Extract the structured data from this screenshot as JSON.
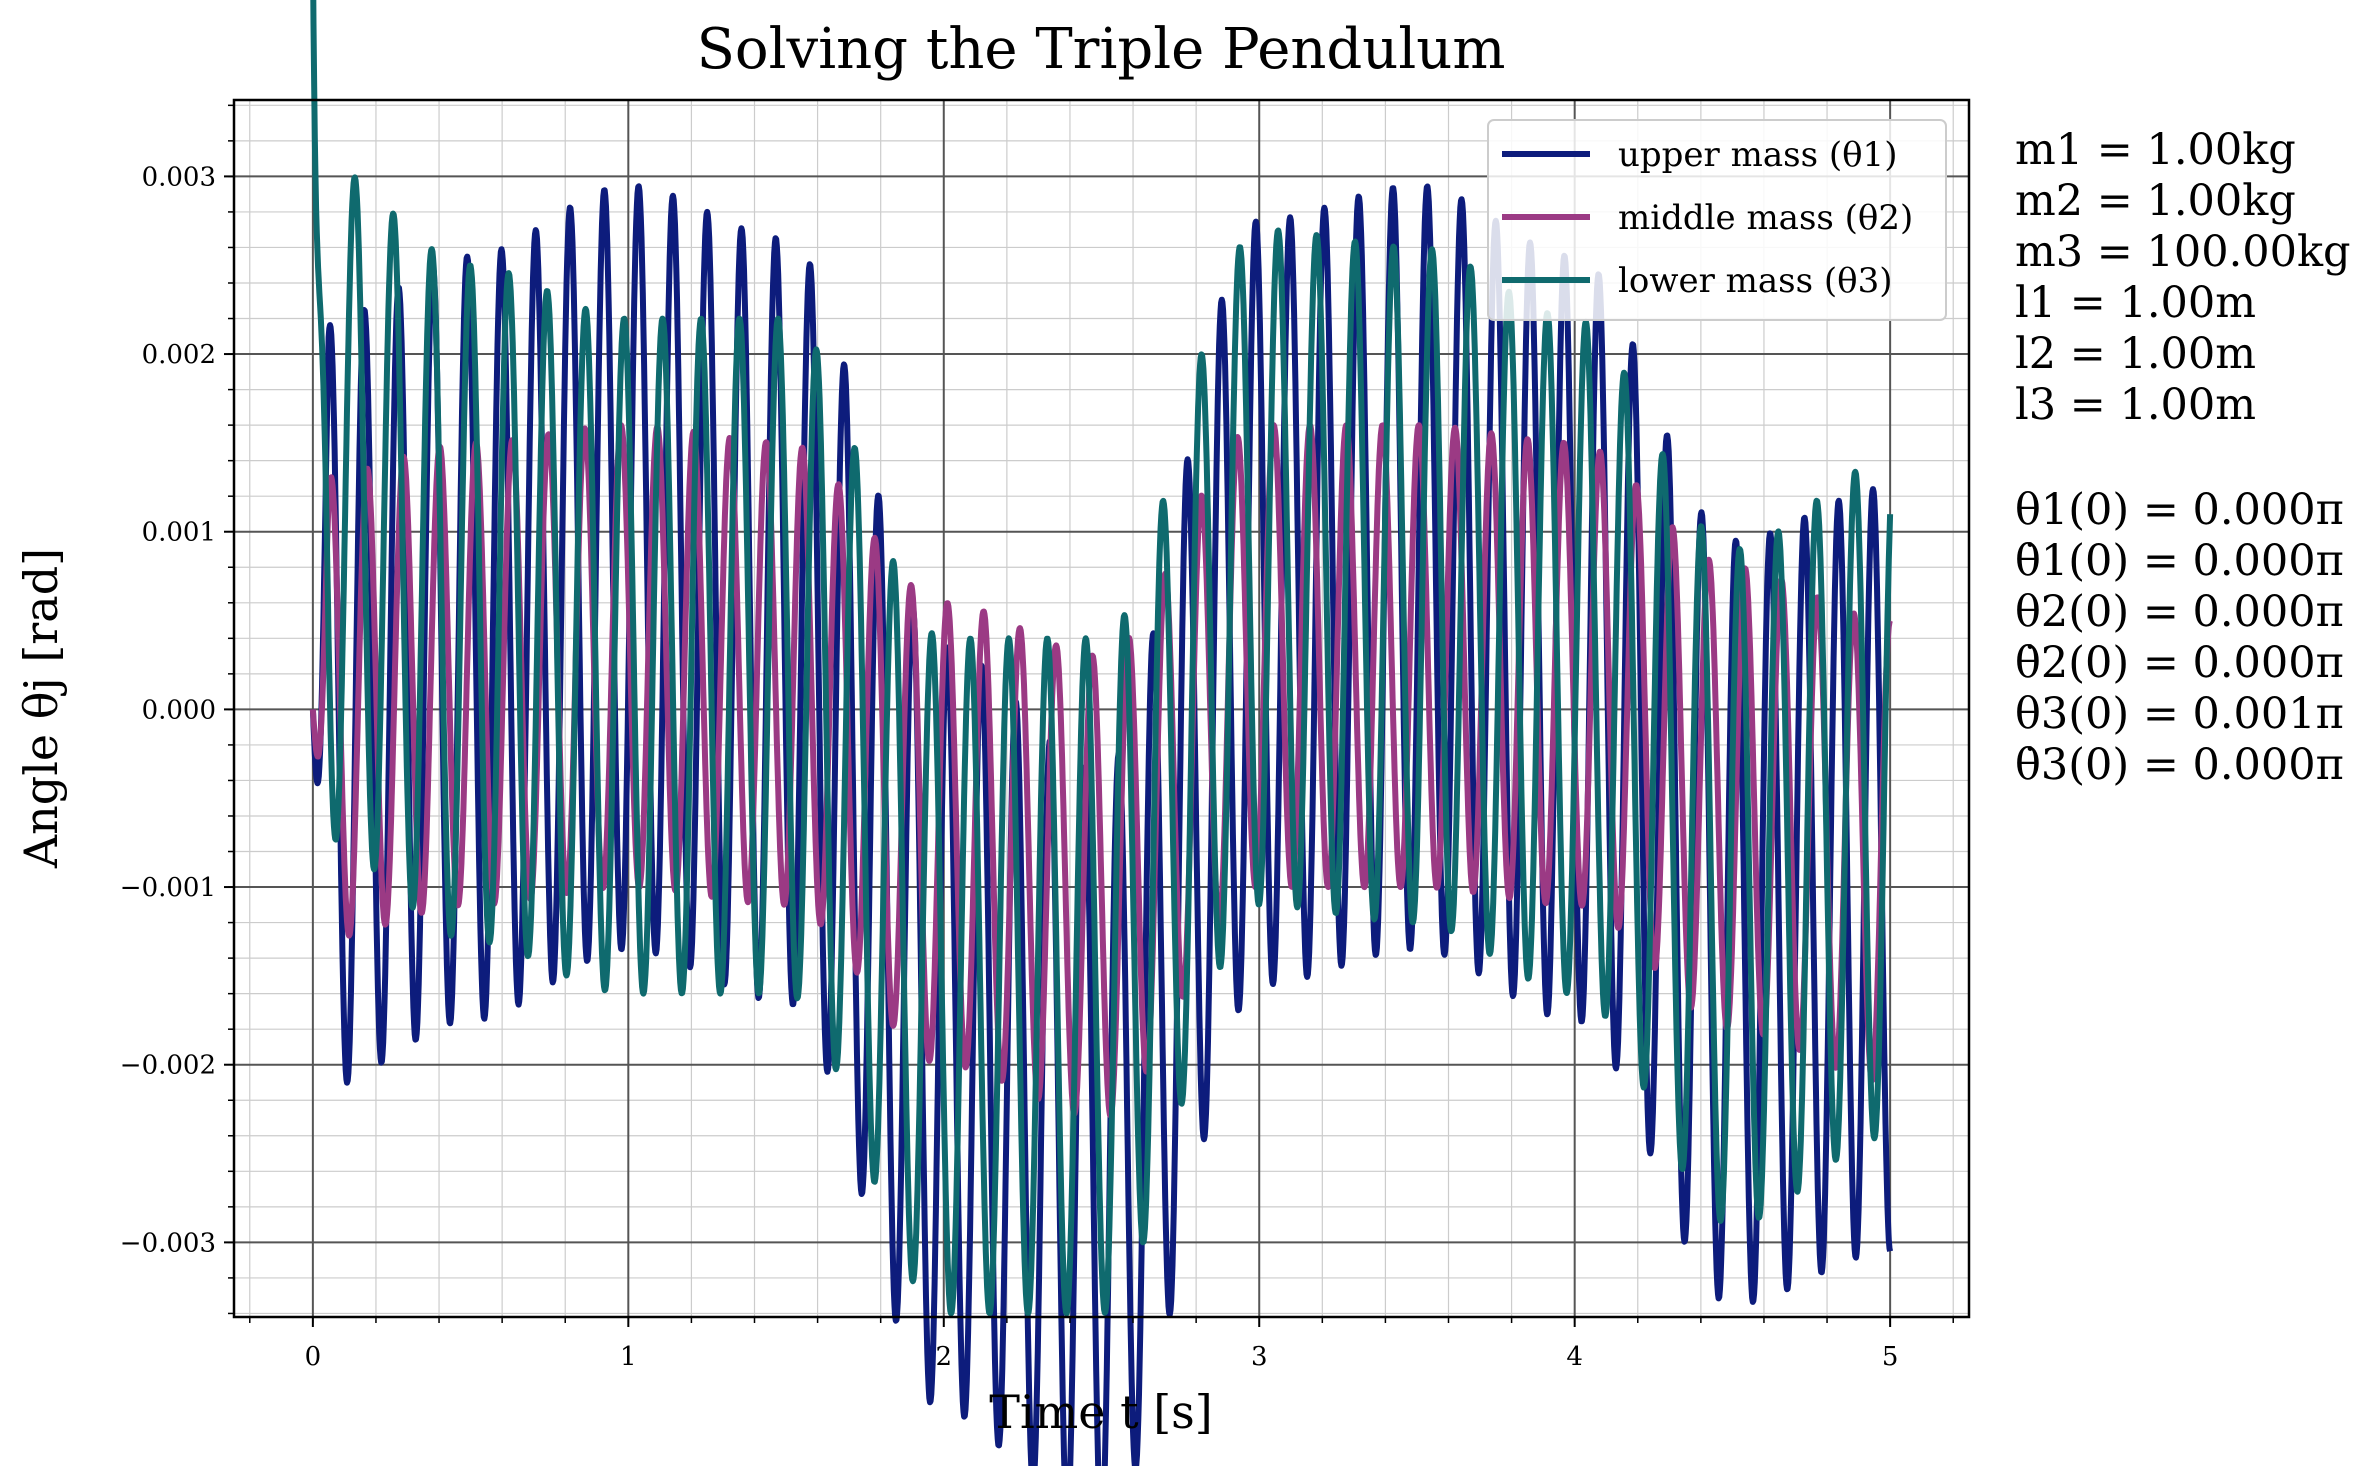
{
  "chart_data": {
    "type": "line",
    "title": "Solving the Triple Pendulum",
    "xlabel": "Time t [s]",
    "ylabel": "Angle θj [rad]",
    "xlim": [
      -0.25,
      5.25
    ],
    "ylim": [
      -0.00342,
      0.00343
    ],
    "x_ticks": [
      0,
      1,
      2,
      3,
      4,
      5
    ],
    "x_tick_labels": [
      "0",
      "1",
      "2",
      "3",
      "4",
      "5"
    ],
    "y_ticks": [
      0.003,
      0.002,
      0.001,
      0.0,
      -0.001,
      -0.002,
      -0.003
    ],
    "y_tick_labels": [
      "0.003",
      "0.002",
      "0.001",
      "0.000",
      "−0.001",
      "−0.002",
      "−0.003"
    ],
    "grid": true,
    "minor_grid": true,
    "legend_position": "top-right",
    "series": [
      {
        "name": "upper mass (θ1)",
        "color": "#0d1c7c",
        "model": {
          "base": [
            0,
            0.0004,
            0.0008,
            0.0005,
            -0.0018,
            -0.0025,
            0.0006,
            0.0008,
            0.0004,
            -0.0012,
            -0.0009
          ],
          "amp": 0.00215,
          "freq": 9.2,
          "phase": -1.5708
        }
      },
      {
        "name": "middle mass (θ2)",
        "color": "#9b3a84",
        "model": {
          "base": [
            0,
            0.0002,
            0.0003,
            0.0002,
            -0.0007,
            -0.001,
            0.0003,
            0.0003,
            0.0002,
            -0.0005,
            -0.0008
          ],
          "amp": 0.0013,
          "freq": 8.7,
          "phase": -1.5708
        }
      },
      {
        "name": "lower mass (θ3)",
        "color": "#0f6a6e",
        "model": {
          "base": [
            0.0012,
            0.0006,
            0.0003,
            0.0003,
            -0.0015,
            -0.0015,
            0.0008,
            0.0007,
            0.0003,
            -0.001,
            -0.0005
          ],
          "amp": 0.0019,
          "freq": 8.2,
          "phase": 1.0
        }
      }
    ]
  },
  "parameters": {
    "lines": [
      "m1 = 1.00kg",
      "m2 = 1.00kg",
      "m3 = 100.00kg",
      "l1 = 1.00m",
      "l2 = 1.00m",
      "l3 = 1.00m"
    ],
    "initial_conditions": [
      "θ1(0) = 0.000π",
      "θ̇1(0) = 0.000π",
      "θ2(0) = 0.000π",
      "θ̇2(0) = 0.000π",
      "θ3(0) = 0.001π",
      "θ̇3(0) = 0.000π"
    ]
  }
}
